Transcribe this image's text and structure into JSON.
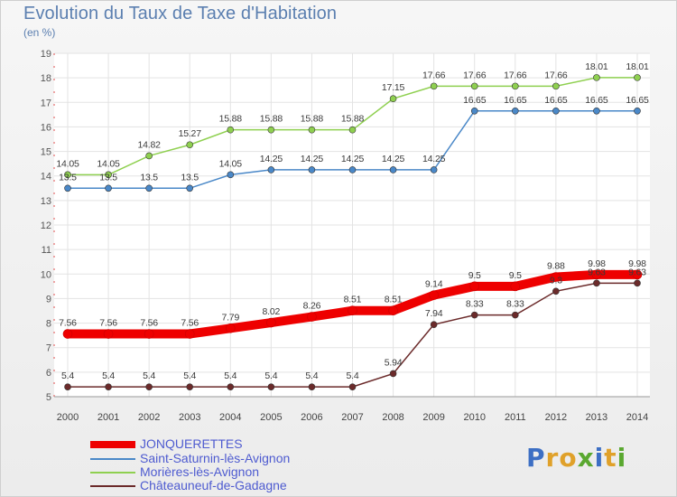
{
  "title": "Evolution du Taux de Taxe d'Habitation",
  "unit": "(en %)",
  "brand": {
    "letters": [
      "P",
      "r",
      "o",
      "x",
      "i",
      "t",
      "i"
    ],
    "colors": [
      "#3d6fc4",
      "#e0a12a",
      "#e0a12a",
      "#5aa830",
      "#3d6fc4",
      "#e0a12a",
      "#5aa830"
    ]
  },
  "chart_data": {
    "type": "line",
    "x": [
      2000,
      2001,
      2002,
      2003,
      2004,
      2005,
      2006,
      2007,
      2008,
      2009,
      2010,
      2011,
      2012,
      2013,
      2014
    ],
    "ylim": [
      5,
      19
    ],
    "yticks": [
      5,
      6,
      7,
      8,
      9,
      10,
      11,
      12,
      13,
      14,
      15,
      16,
      17,
      18,
      19
    ],
    "grid": true,
    "legend_position": "bottom-left",
    "series": [
      {
        "name": "JONQUERETTES",
        "color": "#ee0000",
        "values": [
          7.56,
          7.56,
          7.56,
          7.56,
          7.79,
          8.02,
          8.26,
          8.51,
          8.51,
          9.14,
          9.5,
          9.5,
          9.88,
          9.98,
          9.98
        ],
        "labels": [
          "7.56",
          "7.56",
          "7.56",
          "7.56",
          "7.79",
          "8.02",
          "8.26",
          "8.51",
          "8.51",
          "9.14",
          "9.5",
          "9.5",
          "9.88",
          "9.98",
          "9.98"
        ],
        "bold": true
      },
      {
        "name": "Saint-Saturnin-lès-Avignon",
        "color": "#4a88c8",
        "values": [
          13.5,
          13.5,
          13.5,
          13.5,
          14.05,
          14.25,
          14.25,
          14.25,
          14.25,
          14.25,
          16.65,
          16.65,
          16.65,
          16.65,
          16.65
        ],
        "labels": [
          "13.5",
          "13.5",
          "13.5",
          "13.5",
          "14.05",
          "14.25",
          "14.25",
          "14.25",
          "14.25",
          "14.25",
          "16.65",
          "16.65",
          "16.65",
          "16.65",
          "16.65"
        ]
      },
      {
        "name": "Morières-lès-Avignon",
        "color": "#8fd050",
        "values": [
          14.05,
          14.05,
          14.82,
          15.27,
          15.88,
          15.88,
          15.88,
          15.88,
          17.15,
          17.66,
          17.66,
          17.66,
          17.66,
          18.01,
          18.01
        ],
        "labels": [
          "14.05",
          "14.05",
          "14.82",
          "15.27",
          "15.88",
          "15.88",
          "15.88",
          "15.88",
          "17.15",
          "17.66",
          "17.66",
          "17.66",
          "17.66",
          "18.01",
          "18.01"
        ]
      },
      {
        "name": "Châteauneuf-de-Gadagne",
        "color": "#6b2a2a",
        "values": [
          5.4,
          5.4,
          5.4,
          5.4,
          5.4,
          5.4,
          5.4,
          5.4,
          5.94,
          7.94,
          8.33,
          8.33,
          9.3,
          9.63,
          9.63
        ],
        "labels": [
          "5.4",
          "5.4",
          "5.4",
          "5.4",
          "5.4",
          "5.4",
          "5.4",
          "5.4",
          "5.94",
          "7.94",
          "8.33",
          "8.33",
          "9.3",
          "9.63",
          "9.63"
        ]
      }
    ]
  }
}
